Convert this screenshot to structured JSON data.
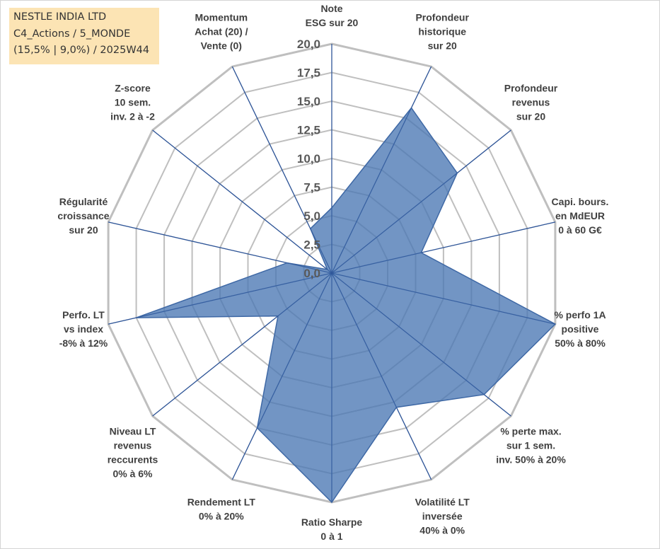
{
  "title_box": {
    "line1": "NESTLE INDIA LTD",
    "line2": "C4_Actions / 5_MONDE",
    "line3": "(15,5% | 9,0%) / 2025W44"
  },
  "colors": {
    "grid": "#bfbfbf",
    "axis": "#2f5597",
    "fill": "#4a77b4",
    "edge": "#3e68a5",
    "tick_text": "#595959",
    "label_text": "#404040",
    "title_bg": "#fce4b4"
  },
  "chart_data": {
    "type": "radar",
    "title": "",
    "rmax": 20,
    "ticks": [
      "0,0",
      "2,5",
      "5,0",
      "7,5",
      "10,0",
      "12,5",
      "15,0",
      "17,5",
      "20,0"
    ],
    "tick_values": [
      0,
      2.5,
      5,
      7.5,
      10,
      12.5,
      15,
      17.5,
      20
    ],
    "axes": [
      {
        "label": [
          "Note",
          "ESG sur 20"
        ],
        "value": 5.7
      },
      {
        "label": [
          "Profondeur",
          "historique",
          "sur 20"
        ],
        "value": 16.0
      },
      {
        "label": [
          "Profondeur",
          "revenus",
          "sur 20"
        ],
        "value": 14.0
      },
      {
        "label": [
          "Capi. bours.",
          "en MdEUR",
          "0 à 60 G€"
        ],
        "value": 8.0
      },
      {
        "label": [
          "% perfo 1A",
          "positive",
          "50% à 80%"
        ],
        "value": 20.0
      },
      {
        "label": [
          "% perte max.",
          "sur 1 sem.",
          "inv. 50% à 20%"
        ],
        "value": 17.0
      },
      {
        "label": [
          "Volatilité LT",
          "inversée",
          "40% à 0%"
        ],
        "value": 13.0
      },
      {
        "label": [
          "Ratio Sharpe",
          "0 à 1"
        ],
        "value": 20.0
      },
      {
        "label": [
          "Rendement LT",
          "0% à 20%"
        ],
        "value": 15.0
      },
      {
        "label": [
          "Niveau LT",
          "revenus",
          "reccurents",
          "0% à 6%"
        ],
        "value": 6.0
      },
      {
        "label": [
          "Perfo. LT",
          "vs index",
          "-8% à 12%"
        ],
        "value": 17.5
      },
      {
        "label": [
          "Régularité",
          "croissance",
          "sur 20"
        ],
        "value": 4.0
      },
      {
        "label": [
          "Z-score",
          "10 sem.",
          "inv. 2 à -2"
        ],
        "value": 0.5
      },
      {
        "label": [
          "Momentum",
          "Achat (20) /",
          "Vente (0)"
        ],
        "value": 4.3
      }
    ]
  }
}
